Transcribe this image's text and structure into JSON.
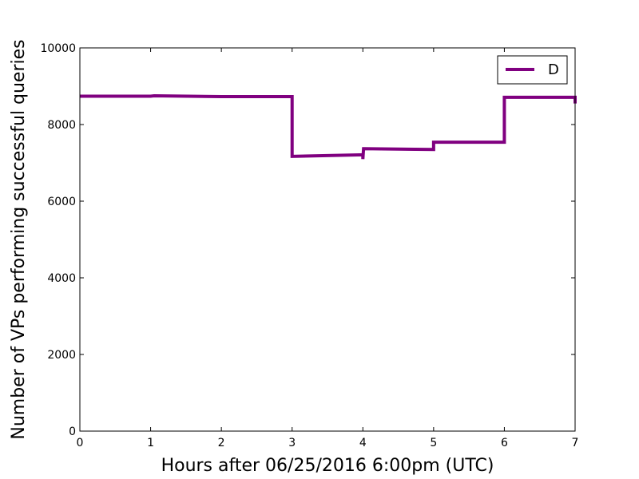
{
  "chart_data": {
    "type": "line",
    "xlabel": "Hours after 06/25/2016 6:00pm (UTC)",
    "ylabel": "Number of VPs performing successful queries",
    "xlim": [
      0,
      7
    ],
    "ylim": [
      0,
      10000
    ],
    "xticks": [
      "0",
      "1",
      "2",
      "3",
      "4",
      "5",
      "6",
      "7"
    ],
    "yticks": [
      "0",
      "2000",
      "4000",
      "6000",
      "8000",
      "10000"
    ],
    "grid": false,
    "legend_position": "top-right",
    "series": [
      {
        "name": "D",
        "color": "#800080",
        "x": [
          0,
          1,
          1.05,
          2,
          3,
          3,
          4,
          4,
          4.01,
          4.02,
          5,
          5,
          6,
          6,
          7,
          7
        ],
        "y": [
          8740,
          8740,
          8750,
          8730,
          8730,
          7170,
          7210,
          7100,
          7370,
          7370,
          7350,
          7540,
          7540,
          8710,
          8710,
          8550
        ]
      }
    ]
  }
}
